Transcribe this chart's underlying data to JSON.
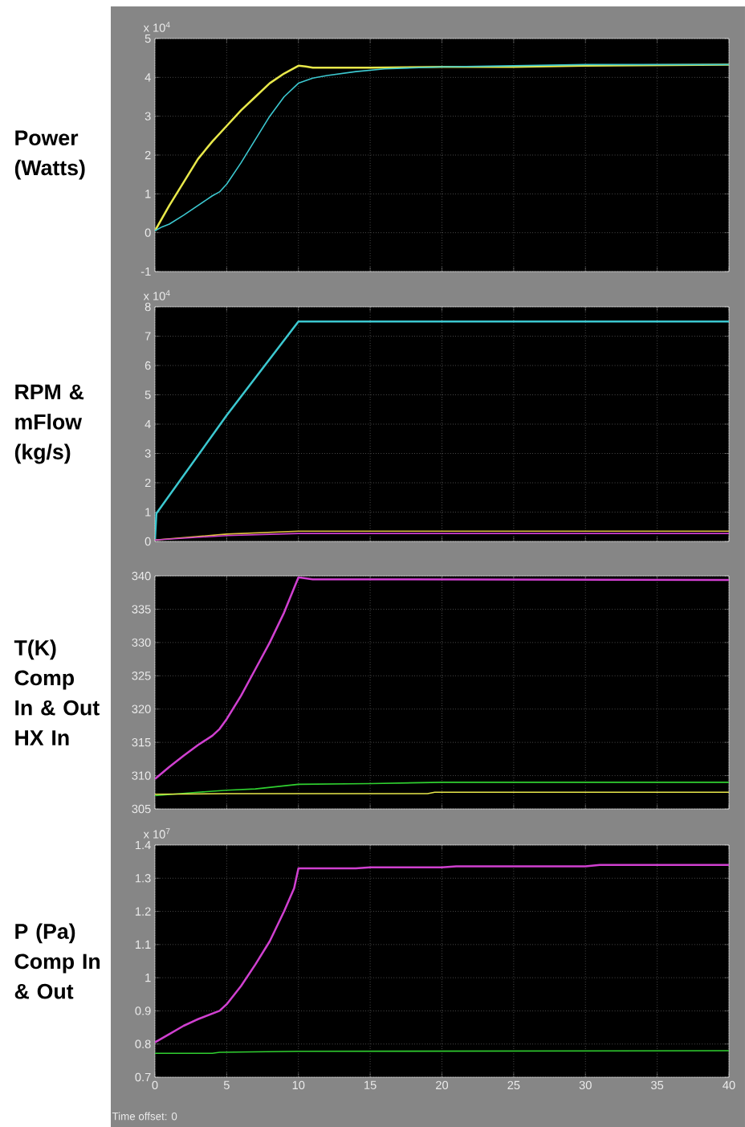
{
  "chart_data": [
    {
      "type": "line",
      "ylabel": "Power (Watts)",
      "xlim": [
        0,
        40
      ],
      "xticks": [
        0,
        5,
        10,
        15,
        20,
        25,
        30,
        35,
        40
      ],
      "ylim": [
        -1,
        5
      ],
      "yticks": [
        -1,
        0,
        1,
        2,
        3,
        4,
        5
      ],
      "grid": true,
      "tick_labels": "y",
      "annotations": [
        "x 10$^{4}$"
      ],
      "series": [
        {
          "color": "#e8e84a",
          "x": [
            0,
            1,
            2,
            3,
            4,
            5,
            6,
            7,
            8,
            9,
            10,
            10.5,
            11,
            15,
            20,
            25,
            30,
            40
          ],
          "values": [
            0.05,
            0.7,
            1.3,
            1.9,
            2.35,
            2.75,
            3.15,
            3.5,
            3.85,
            4.1,
            4.3,
            4.28,
            4.25,
            4.25,
            4.27,
            4.27,
            4.3,
            4.33
          ]
        },
        {
          "color": "#3cc8d0",
          "x": [
            0,
            0.5,
            1,
            2,
            3,
            4,
            4.5,
            5,
            6,
            7,
            8,
            9,
            10,
            11,
            12,
            14,
            16,
            20,
            25,
            30,
            40
          ],
          "values": [
            0.05,
            0.15,
            0.22,
            0.45,
            0.7,
            0.95,
            1.05,
            1.25,
            1.8,
            2.4,
            3.0,
            3.5,
            3.85,
            3.98,
            4.05,
            4.15,
            4.22,
            4.27,
            4.3,
            4.33,
            4.33
          ]
        }
      ]
    },
    {
      "type": "line",
      "ylabel": "RPM & mFlow (kg/s)",
      "xlim": [
        0,
        40
      ],
      "xticks": [
        0,
        5,
        10,
        15,
        20,
        25,
        30,
        35,
        40
      ],
      "ylim": [
        0,
        8
      ],
      "yticks": [
        0,
        1,
        2,
        3,
        4,
        5,
        6,
        7,
        8
      ],
      "grid": true,
      "tick_labels": "y",
      "annotations": [
        "x 10$^{4}$"
      ],
      "series": [
        {
          "color": "#3cc8d0",
          "x": [
            0,
            0.1,
            5,
            10,
            40
          ],
          "values": [
            0.05,
            0.95,
            4.3,
            7.5,
            7.5
          ]
        },
        {
          "color": "#e0c040",
          "x": [
            0,
            5,
            10,
            40
          ],
          "values": [
            0.05,
            0.25,
            0.35,
            0.35
          ]
        },
        {
          "color": "#d040d0",
          "x": [
            0,
            5,
            10,
            40
          ],
          "values": [
            0.05,
            0.2,
            0.27,
            0.27
          ]
        }
      ]
    },
    {
      "type": "line",
      "ylabel": "T(K) Comp In & Out HX In",
      "xlim": [
        0,
        40
      ],
      "xticks": [
        0,
        5,
        10,
        15,
        20,
        25,
        30,
        35,
        40
      ],
      "ylim": [
        305,
        340
      ],
      "yticks": [
        305,
        310,
        315,
        320,
        325,
        330,
        335,
        340
      ],
      "grid": true,
      "tick_labels": "y",
      "series": [
        {
          "color": "#d040d0",
          "x": [
            0,
            1,
            2,
            3,
            4,
            4.5,
            5,
            6,
            7,
            8,
            9,
            10,
            11,
            40
          ],
          "values": [
            309.5,
            311.3,
            313,
            314.6,
            316,
            317,
            318.5,
            322,
            326,
            330,
            334.5,
            339.8,
            339.5,
            339.4
          ]
        },
        {
          "color": "#30d030",
          "x": [
            0,
            3,
            5,
            7,
            10,
            15,
            20,
            40
          ],
          "values": [
            307,
            307.5,
            307.8,
            308,
            308.7,
            308.8,
            309,
            309
          ]
        },
        {
          "color": "#e8e84a",
          "x": [
            0,
            5,
            10,
            19,
            19.5,
            40
          ],
          "values": [
            307.2,
            307.3,
            307.3,
            307.3,
            307.5,
            307.5
          ]
        }
      ]
    },
    {
      "type": "line",
      "ylabel": "P (Pa) Comp In & Out",
      "xlim": [
        0,
        40
      ],
      "xticks": [
        0,
        5,
        10,
        15,
        20,
        25,
        30,
        35,
        40
      ],
      "ylim": [
        0.7,
        1.4
      ],
      "yticks": [
        0.7,
        0.8,
        0.9,
        1,
        1.1,
        1.2,
        1.3,
        1.4
      ],
      "grid": true,
      "annotations": [
        "x 10$^{7}$",
        "Time offset:  0"
      ],
      "series": [
        {
          "color": "#d040d0",
          "x": [
            0,
            1,
            2,
            3,
            4.5,
            5,
            6,
            7,
            8,
            9,
            9.7,
            10,
            14,
            15,
            20,
            21,
            30,
            31,
            40
          ],
          "values": [
            0.805,
            0.83,
            0.855,
            0.875,
            0.9,
            0.92,
            0.975,
            1.04,
            1.11,
            1.2,
            1.27,
            1.33,
            1.33,
            1.333,
            1.333,
            1.336,
            1.336,
            1.34,
            1.34
          ]
        },
        {
          "color": "#30d030",
          "x": [
            0,
            4,
            4.5,
            10,
            40
          ],
          "values": [
            0.772,
            0.772,
            0.775,
            0.778,
            0.78
          ]
        }
      ]
    }
  ]
}
